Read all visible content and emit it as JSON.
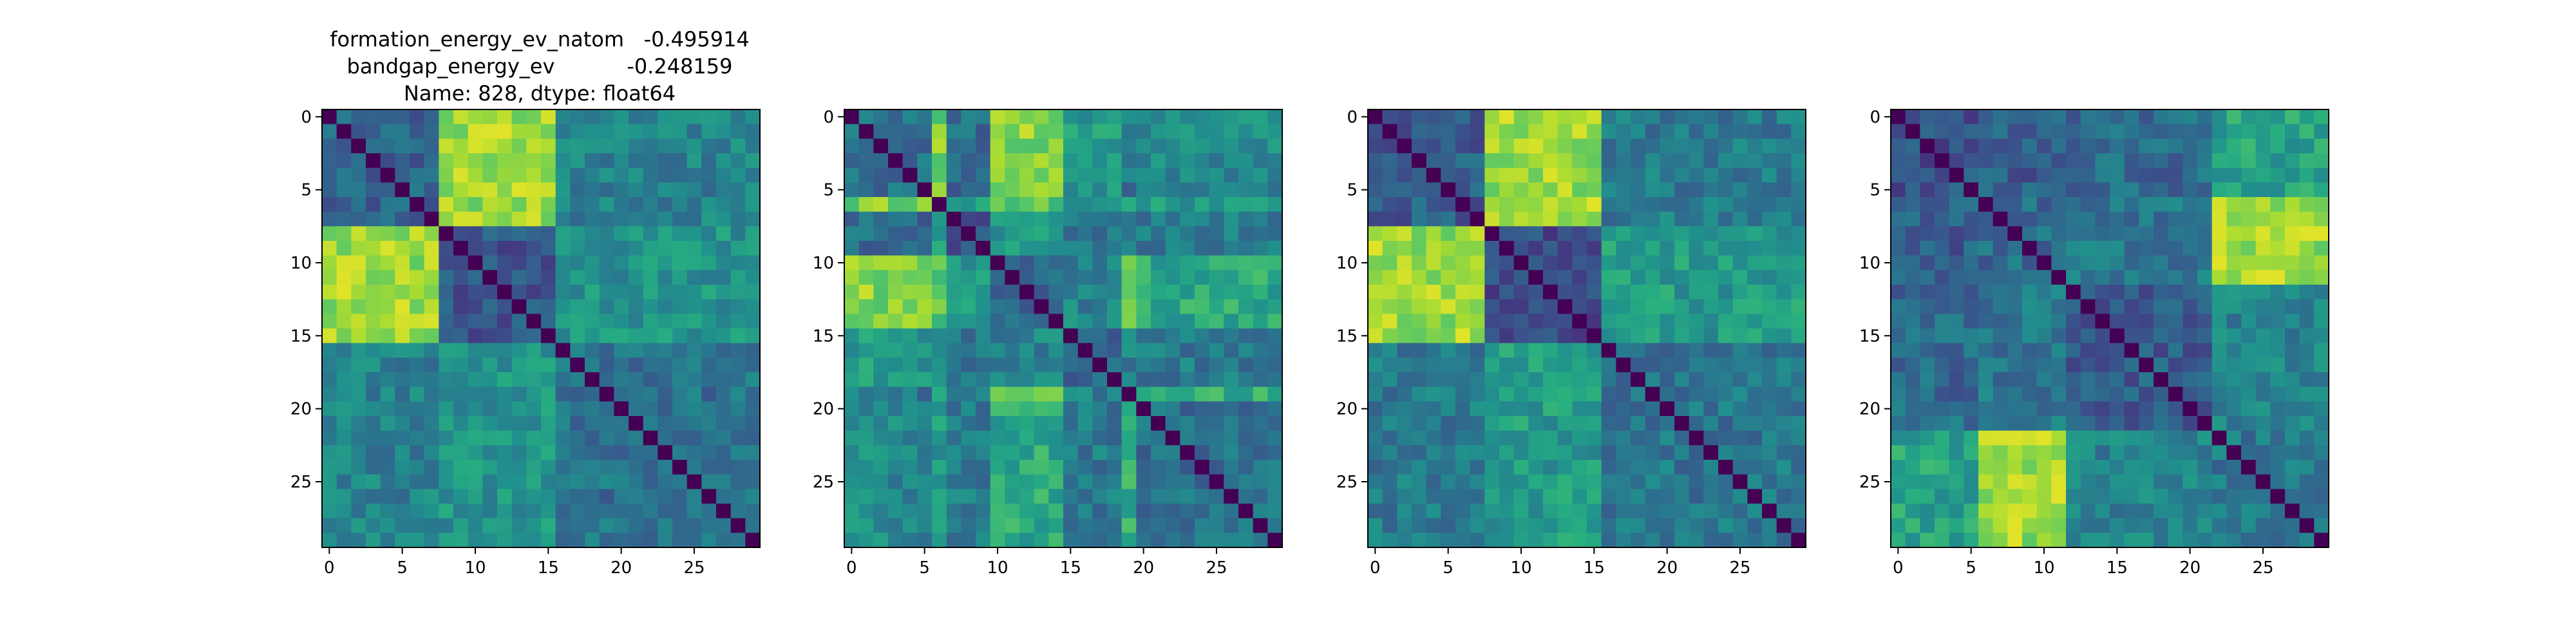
{
  "figure": {
    "title_lines": [
      "formation_energy_ev_natom   -0.495914",
      "bandgap_energy_ev           -0.248159",
      "Name: 828, dtype: float64"
    ]
  },
  "colormap": "viridis",
  "chart_data": [
    {
      "type": "heatmap",
      "size": 30,
      "colormap": "viridis",
      "diagonal_value": 0,
      "xlim": [
        0,
        29
      ],
      "ylim": [
        29,
        0
      ],
      "xticks": [
        0,
        5,
        10,
        15,
        20,
        25
      ],
      "yticks": [
        0,
        5,
        10,
        15,
        20,
        25
      ],
      "blocks": [
        [
          0,
          7
        ],
        [
          8,
          15
        ],
        [
          16,
          29
        ]
      ],
      "block_values": [
        [
          0.32,
          0.86,
          0.45
        ],
        [
          0.86,
          0.28,
          0.52
        ],
        [
          0.45,
          0.52,
          0.38
        ]
      ]
    },
    {
      "type": "heatmap",
      "size": 30,
      "colormap": "viridis",
      "diagonal_value": 0,
      "xlim": [
        0,
        29
      ],
      "ylim": [
        29,
        0
      ],
      "xticks": [
        0,
        5,
        10,
        15,
        20,
        25
      ],
      "yticks": [
        0,
        5,
        10,
        15,
        20,
        25
      ],
      "blocks": [
        [
          0,
          5
        ],
        [
          6,
          6
        ],
        [
          7,
          9
        ],
        [
          10,
          14
        ],
        [
          15,
          18
        ],
        [
          19,
          19
        ],
        [
          20,
          29
        ]
      ],
      "block_values": [
        [
          0.38,
          0.8,
          0.35,
          0.82,
          0.55,
          0.4,
          0.48
        ],
        [
          0.8,
          0.05,
          0.55,
          0.75,
          0.5,
          0.7,
          0.55
        ],
        [
          0.35,
          0.55,
          0.3,
          0.55,
          0.4,
          0.5,
          0.42
        ],
        [
          0.82,
          0.75,
          0.55,
          0.35,
          0.45,
          0.82,
          0.6
        ],
        [
          0.55,
          0.5,
          0.4,
          0.45,
          0.32,
          0.45,
          0.42
        ],
        [
          0.4,
          0.7,
          0.5,
          0.82,
          0.45,
          0.05,
          0.62
        ],
        [
          0.48,
          0.55,
          0.42,
          0.6,
          0.42,
          0.62,
          0.38
        ]
      ]
    },
    {
      "type": "heatmap",
      "size": 30,
      "colormap": "viridis",
      "diagonal_value": 0,
      "xlim": [
        0,
        29
      ],
      "ylim": [
        29,
        0
      ],
      "xticks": [
        0,
        5,
        10,
        15,
        20,
        25
      ],
      "yticks": [
        0,
        5,
        10,
        15,
        20,
        25
      ],
      "blocks": [
        [
          0,
          7
        ],
        [
          8,
          15
        ],
        [
          16,
          29
        ]
      ],
      "block_values": [
        [
          0.3,
          0.86,
          0.42
        ],
        [
          0.86,
          0.25,
          0.55
        ],
        [
          0.42,
          0.55,
          0.4
        ]
      ]
    },
    {
      "type": "heatmap",
      "size": 30,
      "colormap": "viridis",
      "diagonal_value": 0,
      "xlim": [
        0,
        29
      ],
      "ylim": [
        29,
        0
      ],
      "xticks": [
        0,
        5,
        10,
        15,
        20,
        25
      ],
      "yticks": [
        0,
        5,
        10,
        15,
        20,
        25
      ],
      "blocks": [
        [
          0,
          5
        ],
        [
          6,
          11
        ],
        [
          12,
          21
        ],
        [
          22,
          29
        ]
      ],
      "block_values": [
        [
          0.25,
          0.3,
          0.35,
          0.58
        ],
        [
          0.3,
          0.35,
          0.4,
          0.85
        ],
        [
          0.35,
          0.4,
          0.3,
          0.45
        ],
        [
          0.58,
          0.85,
          0.45,
          0.4
        ]
      ]
    }
  ]
}
